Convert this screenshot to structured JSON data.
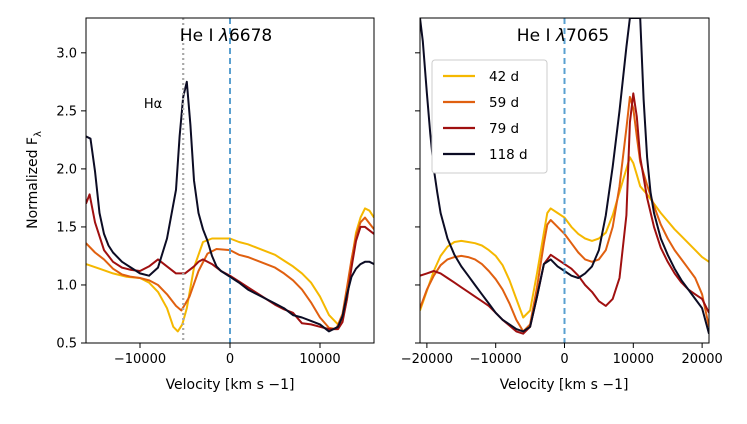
{
  "figure": {
    "ylabel_main": "Normalized F",
    "ylabel_sub": "λ"
  },
  "chart_data": [
    {
      "type": "line",
      "title_prefix": "He I ",
      "title_lambda": "λ",
      "title_value": "6678",
      "xlabel": "Velocity [km s −1]",
      "ylabel": "Normalized Fλ",
      "xlim": [
        -16000,
        16000
      ],
      "ylim": [
        0.5,
        3.3
      ],
      "xticks": [
        -10000,
        0,
        10000
      ],
      "xtick_labels": [
        "−10000",
        "0",
        "10000"
      ],
      "yticks": [
        0.5,
        1.0,
        1.5,
        2.0,
        2.5,
        3.0
      ],
      "ytick_labels": [
        "0.5",
        "1.0",
        "1.5",
        "2.0",
        "2.5",
        "3.0"
      ],
      "annotation": {
        "text": "Hα",
        "x": -8800,
        "y": 2.58
      },
      "vlines": [
        {
          "x": 0,
          "style": "dashed",
          "color": "#5aa0d0"
        },
        {
          "x": -5200,
          "style": "dotted",
          "color": "#a8a8a8"
        }
      ],
      "grid": false,
      "series": [
        {
          "name": "42 d",
          "color": "#f5b800",
          "x": [
            -16000,
            -14500,
            -13000,
            -11500,
            -10000,
            -9000,
            -8000,
            -7000,
            -6300,
            -5800,
            -5300,
            -4800,
            -4000,
            -3000,
            -2000,
            -1000,
            0,
            1000,
            2000,
            3000,
            4000,
            5000,
            6000,
            7000,
            8000,
            9000,
            10000,
            11000,
            12000,
            12500,
            13000,
            13500,
            14000,
            14500,
            15000,
            15500,
            16000
          ],
          "y": [
            1.18,
            1.14,
            1.1,
            1.07,
            1.06,
            1.02,
            0.94,
            0.8,
            0.64,
            0.6,
            0.66,
            0.8,
            1.15,
            1.37,
            1.4,
            1.4,
            1.4,
            1.37,
            1.35,
            1.32,
            1.29,
            1.26,
            1.21,
            1.16,
            1.1,
            1.02,
            0.9,
            0.74,
            0.66,
            0.7,
            0.88,
            1.2,
            1.45,
            1.58,
            1.66,
            1.64,
            1.58
          ]
        },
        {
          "name": "59 d",
          "color": "#e06010",
          "x": [
            -16000,
            -15000,
            -14000,
            -13000,
            -12000,
            -11000,
            -10000,
            -9000,
            -8000,
            -7000,
            -6000,
            -5400,
            -4500,
            -3500,
            -2500,
            -1500,
            0,
            1000,
            2000,
            3000,
            4000,
            5000,
            6000,
            7000,
            8000,
            9000,
            10000,
            11000,
            11800,
            12500,
            13000,
            13500,
            14000,
            14500,
            15000,
            16000
          ],
          "y": [
            1.36,
            1.28,
            1.22,
            1.14,
            1.09,
            1.07,
            1.06,
            1.04,
            1.0,
            0.92,
            0.82,
            0.78,
            0.9,
            1.12,
            1.27,
            1.31,
            1.3,
            1.26,
            1.24,
            1.21,
            1.18,
            1.15,
            1.1,
            1.04,
            0.96,
            0.85,
            0.72,
            0.63,
            0.62,
            0.75,
            0.98,
            1.22,
            1.42,
            1.54,
            1.58,
            1.48
          ]
        },
        {
          "name": "79 d",
          "color": "#a01010",
          "x": [
            -16000,
            -15600,
            -15000,
            -14000,
            -13000,
            -12000,
            -11000,
            -10000,
            -9000,
            -8000,
            -7000,
            -6000,
            -5000,
            -4000,
            -3500,
            -3000,
            -2000,
            -1000,
            0,
            1000,
            2000,
            3000,
            4000,
            5000,
            6000,
            7000,
            8000,
            9000,
            10000,
            11000,
            12000,
            12500,
            13000,
            13500,
            14000,
            14500,
            15000,
            16000
          ],
          "y": [
            1.7,
            1.78,
            1.54,
            1.3,
            1.2,
            1.15,
            1.13,
            1.12,
            1.16,
            1.22,
            1.16,
            1.1,
            1.1,
            1.16,
            1.2,
            1.22,
            1.18,
            1.12,
            1.08,
            1.03,
            0.98,
            0.93,
            0.88,
            0.83,
            0.79,
            0.76,
            0.67,
            0.66,
            0.64,
            0.62,
            0.62,
            0.68,
            0.88,
            1.15,
            1.38,
            1.5,
            1.5,
            1.44
          ]
        },
        {
          "name": "118 d",
          "color": "#0c0c24",
          "x": [
            -16000,
            -15500,
            -15000,
            -14500,
            -14000,
            -13500,
            -13000,
            -12000,
            -11000,
            -10000,
            -9000,
            -8000,
            -7000,
            -6000,
            -5600,
            -5200,
            -4800,
            -4400,
            -4000,
            -3500,
            -3000,
            -2500,
            -2000,
            -1500,
            -1000,
            0,
            1000,
            2000,
            3000,
            4000,
            5000,
            6000,
            7000,
            8000,
            9000,
            10000,
            11000,
            12000,
            12500,
            13000,
            13500,
            14000,
            14500,
            15000,
            15500,
            16000
          ],
          "y": [
            2.28,
            2.26,
            1.98,
            1.62,
            1.44,
            1.34,
            1.28,
            1.2,
            1.15,
            1.1,
            1.08,
            1.15,
            1.4,
            1.82,
            2.28,
            2.62,
            2.75,
            2.38,
            1.9,
            1.62,
            1.48,
            1.38,
            1.25,
            1.16,
            1.12,
            1.07,
            1.02,
            0.96,
            0.92,
            0.88,
            0.84,
            0.8,
            0.74,
            0.72,
            0.69,
            0.66,
            0.6,
            0.64,
            0.73,
            0.92,
            1.07,
            1.14,
            1.18,
            1.2,
            1.2,
            1.18
          ]
        }
      ]
    },
    {
      "type": "line",
      "title_prefix": "He I ",
      "title_lambda": "λ",
      "title_value": "7065",
      "xlabel": "Velocity [km s −1]",
      "xlim": [
        -21000,
        21000
      ],
      "ylim": [
        0.5,
        3.3
      ],
      "xticks": [
        -20000,
        -10000,
        0,
        10000,
        20000
      ],
      "xtick_labels": [
        "−20000",
        "−10000",
        "0",
        "10000",
        "20000"
      ],
      "vlines": [
        {
          "x": 0,
          "style": "dashed",
          "color": "#5aa0d0"
        }
      ],
      "grid": false,
      "legend": {
        "position": "top-left"
      },
      "series": [
        {
          "name": "42 d",
          "color": "#f5b800",
          "x": [
            -21000,
            -20000,
            -19000,
            -18000,
            -17000,
            -16000,
            -15000,
            -14000,
            -13000,
            -12000,
            -11000,
            -10000,
            -9000,
            -8000,
            -7000,
            -6000,
            -5000,
            -4000,
            -3000,
            -2500,
            -2000,
            -1000,
            0,
            1000,
            2000,
            3000,
            4000,
            5000,
            6000,
            7000,
            8000,
            9000,
            9500,
            10000,
            10500,
            11000,
            12000,
            13000,
            14000,
            15000,
            16000,
            17000,
            18000,
            19000,
            20000,
            21000
          ],
          "y": [
            0.78,
            0.95,
            1.12,
            1.25,
            1.33,
            1.37,
            1.38,
            1.37,
            1.36,
            1.34,
            1.3,
            1.25,
            1.17,
            1.04,
            0.88,
            0.72,
            0.78,
            1.1,
            1.45,
            1.62,
            1.66,
            1.62,
            1.58,
            1.5,
            1.44,
            1.4,
            1.38,
            1.4,
            1.45,
            1.6,
            1.8,
            2.0,
            2.1,
            2.05,
            1.95,
            1.85,
            1.78,
            1.7,
            1.62,
            1.55,
            1.48,
            1.42,
            1.36,
            1.3,
            1.24,
            1.2
          ]
        },
        {
          "name": "59 d",
          "color": "#e06010",
          "x": [
            -21000,
            -20000,
            -19000,
            -18000,
            -17000,
            -16000,
            -15000,
            -14000,
            -13000,
            -12000,
            -11000,
            -10000,
            -9000,
            -8000,
            -7000,
            -6000,
            -5000,
            -4000,
            -3000,
            -2500,
            -2000,
            -1000,
            0,
            1000,
            2000,
            3000,
            4000,
            5000,
            6000,
            7000,
            8000,
            9000,
            9500,
            10000,
            10500,
            11000,
            12000,
            13000,
            14000,
            15000,
            16000,
            17000,
            18000,
            19000,
            20000,
            21000
          ],
          "y": [
            0.8,
            0.96,
            1.08,
            1.17,
            1.22,
            1.24,
            1.25,
            1.24,
            1.22,
            1.18,
            1.12,
            1.05,
            0.96,
            0.84,
            0.7,
            0.6,
            0.66,
            0.98,
            1.36,
            1.52,
            1.56,
            1.5,
            1.44,
            1.36,
            1.28,
            1.22,
            1.2,
            1.22,
            1.3,
            1.5,
            1.85,
            2.35,
            2.62,
            2.52,
            2.28,
            2.06,
            1.86,
            1.68,
            1.52,
            1.4,
            1.3,
            1.22,
            1.14,
            1.06,
            0.92,
            0.64
          ]
        },
        {
          "name": "79 d",
          "color": "#a01010",
          "x": [
            -21000,
            -20000,
            -19000,
            -18000,
            -17000,
            -16000,
            -15000,
            -14000,
            -13000,
            -12000,
            -11000,
            -10000,
            -9000,
            -8000,
            -7000,
            -6000,
            -5000,
            -4000,
            -3000,
            -2000,
            -1000,
            0,
            1000,
            2000,
            3000,
            4000,
            5000,
            6000,
            7000,
            8000,
            9000,
            9500,
            10000,
            10500,
            11000,
            12000,
            13000,
            14000,
            15000,
            16000,
            17000,
            18000,
            19000,
            20000,
            21000
          ],
          "y": [
            1.08,
            1.1,
            1.12,
            1.1,
            1.06,
            1.02,
            0.98,
            0.94,
            0.9,
            0.86,
            0.82,
            0.76,
            0.7,
            0.65,
            0.6,
            0.58,
            0.64,
            0.9,
            1.18,
            1.26,
            1.22,
            1.18,
            1.14,
            1.08,
            1.0,
            0.94,
            0.86,
            0.82,
            0.88,
            1.06,
            1.6,
            2.4,
            2.65,
            2.45,
            2.1,
            1.75,
            1.5,
            1.32,
            1.2,
            1.1,
            1.02,
            0.96,
            0.92,
            0.88,
            0.76
          ]
        },
        {
          "name": "118 d",
          "color": "#0c0c24",
          "x": [
            -21000,
            -20600,
            -20000,
            -19500,
            -19000,
            -18500,
            -18000,
            -17000,
            -16000,
            -15000,
            -14000,
            -13000,
            -12000,
            -11000,
            -10000,
            -9000,
            -8000,
            -7000,
            -6000,
            -5000,
            -4000,
            -3000,
            -2000,
            -1000,
            0,
            1000,
            2000,
            3000,
            4000,
            5000,
            6000,
            7000,
            8000,
            9000,
            9500,
            10000,
            10500,
            11000,
            11500,
            12000,
            12500,
            13000,
            14000,
            15000,
            16000,
            17000,
            18000,
            19000,
            20000,
            21000
          ],
          "y": [
            3.3,
            3.1,
            2.65,
            2.3,
            2.0,
            1.8,
            1.62,
            1.4,
            1.26,
            1.16,
            1.08,
            1.0,
            0.92,
            0.84,
            0.76,
            0.7,
            0.66,
            0.62,
            0.6,
            0.64,
            0.9,
            1.18,
            1.22,
            1.16,
            1.12,
            1.08,
            1.06,
            1.1,
            1.16,
            1.3,
            1.6,
            2.02,
            2.5,
            3.05,
            3.3,
            3.3,
            3.3,
            3.3,
            2.6,
            2.1,
            1.8,
            1.62,
            1.4,
            1.26,
            1.14,
            1.04,
            0.96,
            0.88,
            0.8,
            0.58
          ]
        }
      ]
    }
  ]
}
